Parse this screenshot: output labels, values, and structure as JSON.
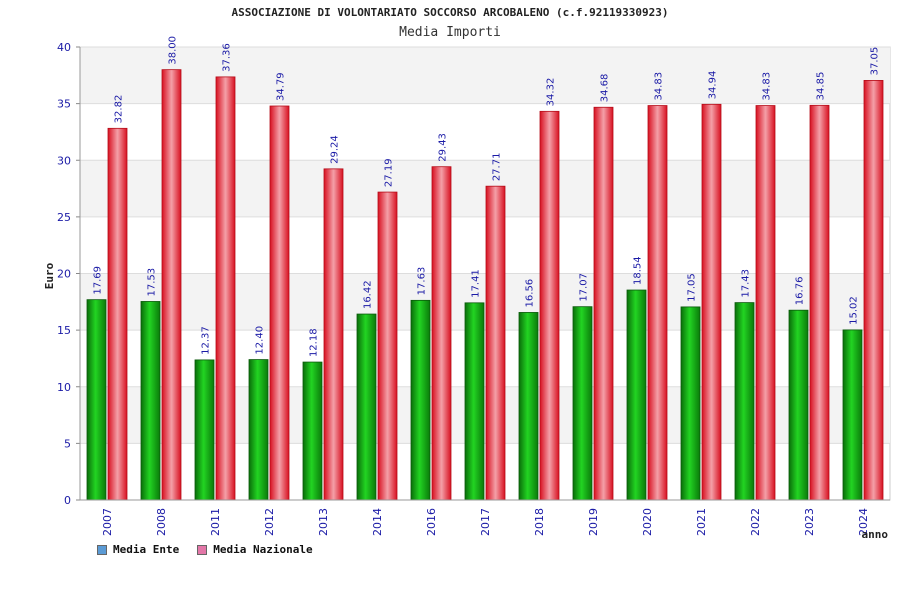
{
  "chart_data": {
    "type": "bar",
    "title": "ASSOCIAZIONE DI VOLONTARIATO SOCCORSO ARCOBALENO (c.f.92119330923)",
    "subtitle": "Media Importi",
    "xlabel": "anno",
    "ylabel": "Euro",
    "ylim": [
      0,
      40
    ],
    "yticks": [
      0,
      5,
      10,
      15,
      20,
      25,
      30,
      35,
      40
    ],
    "categories": [
      "2007",
      "2008",
      "2011",
      "2012",
      "2013",
      "2014",
      "2016",
      "2017",
      "2018",
      "2019",
      "2020",
      "2021",
      "2022",
      "2023",
      "2024"
    ],
    "series": [
      {
        "name": "Media Ente",
        "color": "#1a9e1a",
        "legend_color": "#5b9bd5",
        "values": [
          17.69,
          17.53,
          12.37,
          12.4,
          12.18,
          16.42,
          17.63,
          17.41,
          16.56,
          17.07,
          18.54,
          17.05,
          17.43,
          16.76,
          15.02
        ],
        "labels": [
          "17.69",
          "17.53",
          "12.37",
          "12.40",
          "12.18",
          "16.42",
          "17.63",
          "17.41",
          "16.56",
          "17.07",
          "18.54",
          "17.05",
          "17.43",
          "16.76",
          "15.02"
        ]
      },
      {
        "name": "Media Nazionale",
        "color": "#e8222e",
        "legend_color": "#e377a8",
        "values": [
          32.82,
          38.0,
          37.36,
          34.79,
          29.24,
          27.19,
          29.43,
          27.71,
          34.32,
          34.68,
          34.83,
          34.94,
          34.83,
          34.85,
          37.05
        ],
        "labels": [
          "32.82",
          "38.00",
          "37.36",
          "34.79",
          "29.24",
          "27.19",
          "29.43",
          "27.71",
          "34.32",
          "34.68",
          "34.83",
          "34.94",
          "34.83",
          "34.85",
          "37.05"
        ]
      }
    ],
    "grid": true,
    "legend_position": "bottom-left"
  }
}
